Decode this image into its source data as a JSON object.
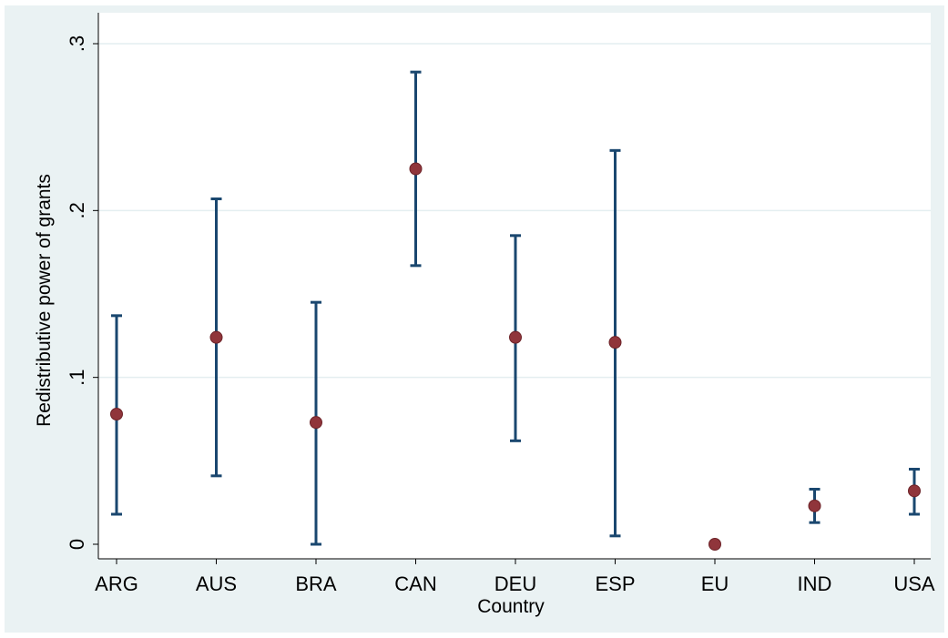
{
  "chart_data": {
    "type": "scatter",
    "subtype": "point-with-error-bars",
    "title": "",
    "xlabel": "Country",
    "ylabel": "Redistributive power of grants",
    "categories": [
      "ARG",
      "AUS",
      "BRA",
      "CAN",
      "DEU",
      "ESP",
      "EU",
      "IND",
      "USA"
    ],
    "estimate": [
      0.078,
      0.124,
      0.073,
      0.225,
      0.124,
      0.121,
      0.0,
      0.023,
      0.032
    ],
    "ci_lower": [
      0.018,
      0.041,
      0.0,
      0.167,
      0.062,
      0.005,
      0.0,
      0.013,
      0.018
    ],
    "ci_upper": [
      0.137,
      0.207,
      0.145,
      0.283,
      0.185,
      0.236,
      0.0,
      0.033,
      0.045
    ],
    "ylim": [
      0,
      0.3
    ],
    "yticks": [
      0,
      0.1,
      0.2,
      0.3
    ],
    "ytick_labels": [
      "0",
      ".1",
      ".2",
      ".3"
    ],
    "grid": true,
    "legend": "none",
    "colors": {
      "outer_background": "#eaf2f3",
      "plot_background": "#ffffff",
      "gridline": "#e4eef0",
      "error_bar": "#1a476f",
      "marker": "#90353b",
      "marker_edge": "#6d2328"
    }
  }
}
